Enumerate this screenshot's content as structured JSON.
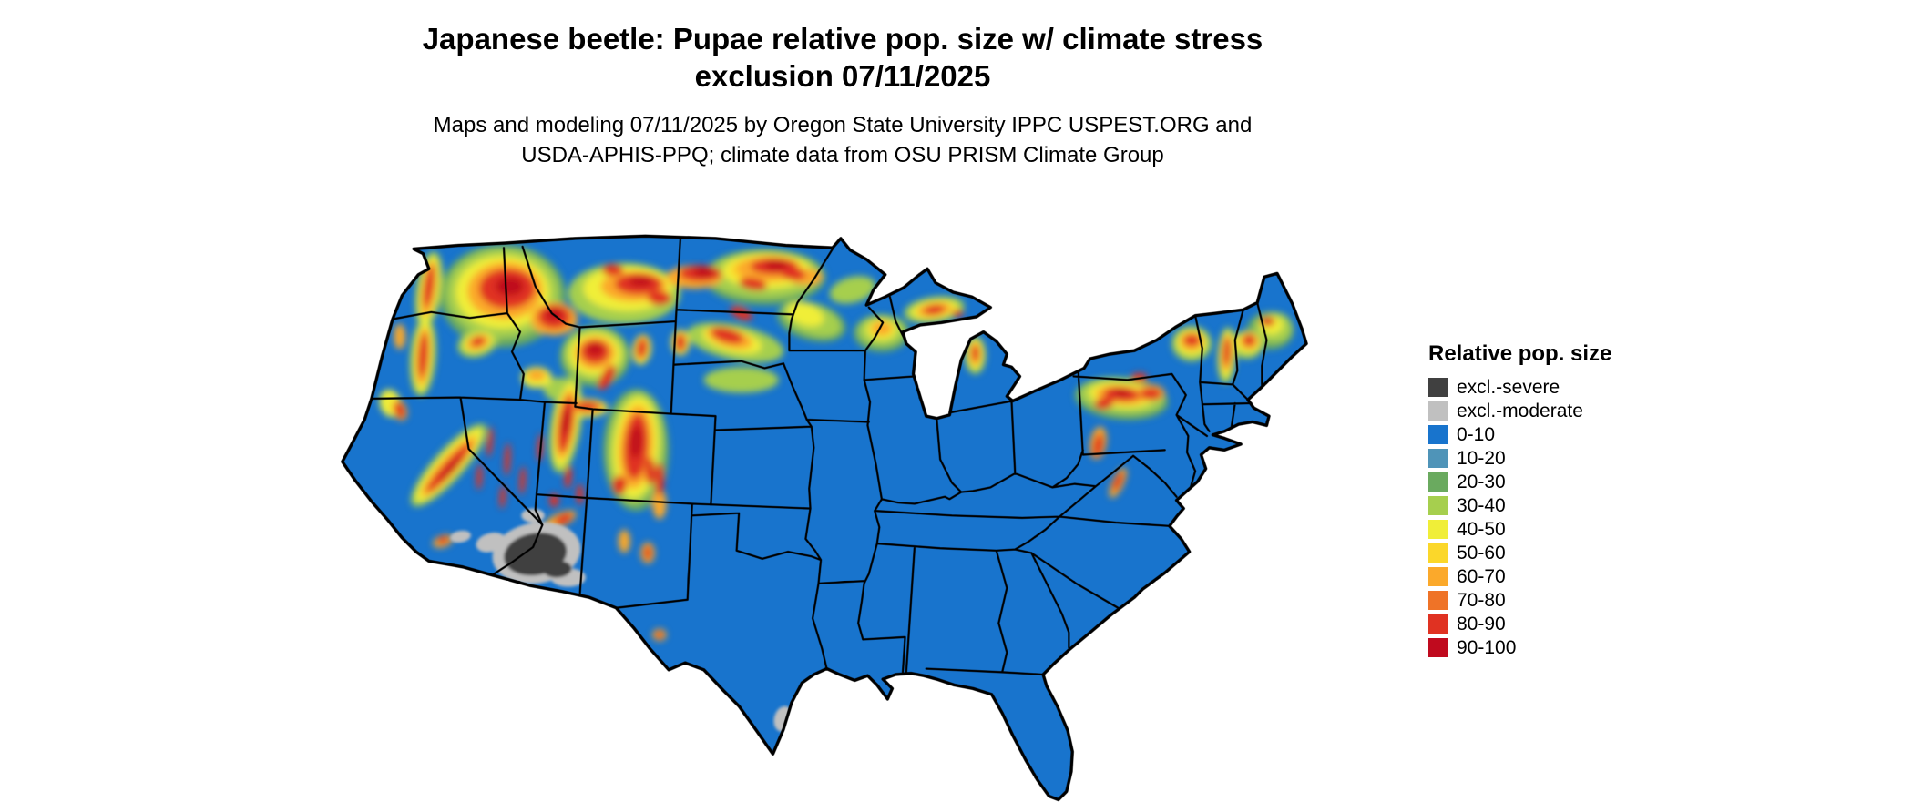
{
  "title": {
    "line1": "Japanese beetle: Pupae relative pop. size w/ climate stress",
    "line2": "exclusion 07/11/2025"
  },
  "subtitle": {
    "line1": "Maps and modeling 07/11/2025 by Oregon State University IPPC USPEST.ORG and",
    "line2": "USDA-APHIS-PPQ; climate data from OSU PRISM Climate Group"
  },
  "map": {
    "region": "contiguous United States",
    "base_color": "#1874cd",
    "border_color": "#000000"
  },
  "legend": {
    "title": "Relative pop. size",
    "items": [
      {
        "label": "excl.-severe",
        "color": "#404040"
      },
      {
        "label": "excl.-moderate",
        "color": "#c0c0c0"
      },
      {
        "label": "0-10",
        "color": "#1874cd"
      },
      {
        "label": "10-20",
        "color": "#4f94b8"
      },
      {
        "label": "20-30",
        "color": "#6aaa5f"
      },
      {
        "label": "30-40",
        "color": "#a6cf4e"
      },
      {
        "label": "40-50",
        "color": "#f0ee38"
      },
      {
        "label": "50-60",
        "color": "#fbd72a"
      },
      {
        "label": "60-70",
        "color": "#fba92b"
      },
      {
        "label": "70-80",
        "color": "#ef7327"
      },
      {
        "label": "80-90",
        "color": "#e03222"
      },
      {
        "label": "90-100",
        "color": "#c00a1e"
      }
    ]
  }
}
